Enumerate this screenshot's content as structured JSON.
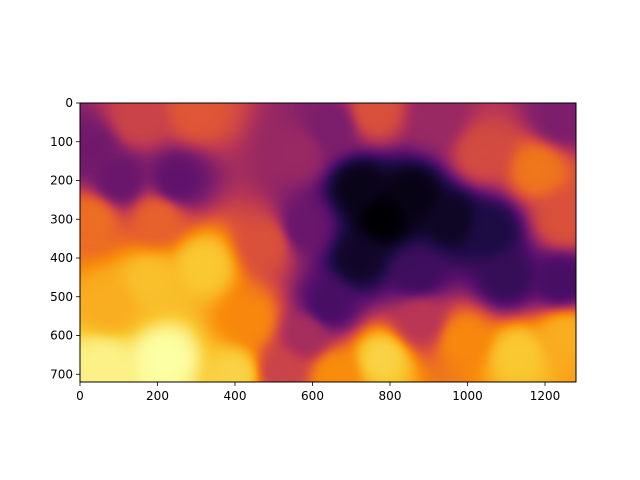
{
  "chart_data": {
    "type": "heatmap",
    "title": "",
    "xlabel": "",
    "ylabel": "",
    "colormap": "inferno",
    "image_size": [
      1280,
      720
    ],
    "xlim": [
      0,
      1280
    ],
    "ylim": [
      720,
      0
    ],
    "x_ticks": [
      0,
      200,
      400,
      600,
      800,
      1000,
      1200
    ],
    "y_ticks": [
      0,
      100,
      200,
      300,
      400,
      500,
      600,
      700
    ],
    "colorbar": false,
    "grid": false,
    "value_range": [
      0,
      1
    ],
    "field": {
      "note": "approximate relative intensity, 0 = dark (black/purple), 1 = bright (yellow)",
      "points": [
        {
          "x": 60,
          "y": 680,
          "v": 0.97
        },
        {
          "x": 220,
          "y": 660,
          "v": 1.0
        },
        {
          "x": 320,
          "y": 420,
          "v": 0.88
        },
        {
          "x": 180,
          "y": 460,
          "v": 0.86
        },
        {
          "x": 80,
          "y": 520,
          "v": 0.82
        },
        {
          "x": 30,
          "y": 300,
          "v": 0.68
        },
        {
          "x": 200,
          "y": 300,
          "v": 0.65
        },
        {
          "x": 440,
          "y": 560,
          "v": 0.74
        },
        {
          "x": 480,
          "y": 360,
          "v": 0.6
        },
        {
          "x": 150,
          "y": 40,
          "v": 0.55
        },
        {
          "x": 300,
          "y": 20,
          "v": 0.62
        },
        {
          "x": 100,
          "y": 200,
          "v": 0.3
        },
        {
          "x": 250,
          "y": 200,
          "v": 0.28
        },
        {
          "x": 30,
          "y": 120,
          "v": 0.32
        },
        {
          "x": 560,
          "y": 130,
          "v": 0.42
        },
        {
          "x": 650,
          "y": 60,
          "v": 0.35
        },
        {
          "x": 760,
          "y": 20,
          "v": 0.6
        },
        {
          "x": 920,
          "y": 40,
          "v": 0.42
        },
        {
          "x": 580,
          "y": 320,
          "v": 0.3
        },
        {
          "x": 640,
          "y": 520,
          "v": 0.22
        },
        {
          "x": 580,
          "y": 600,
          "v": 0.45
        },
        {
          "x": 780,
          "y": 300,
          "v": 0.0
        },
        {
          "x": 720,
          "y": 220,
          "v": 0.04
        },
        {
          "x": 860,
          "y": 240,
          "v": 0.03
        },
        {
          "x": 960,
          "y": 300,
          "v": 0.06
        },
        {
          "x": 720,
          "y": 400,
          "v": 0.07
        },
        {
          "x": 1060,
          "y": 330,
          "v": 0.12
        },
        {
          "x": 1100,
          "y": 450,
          "v": 0.18
        },
        {
          "x": 1240,
          "y": 460,
          "v": 0.22
        },
        {
          "x": 870,
          "y": 440,
          "v": 0.2
        },
        {
          "x": 1040,
          "y": 130,
          "v": 0.58
        },
        {
          "x": 1180,
          "y": 170,
          "v": 0.7
        },
        {
          "x": 1250,
          "y": 300,
          "v": 0.6
        },
        {
          "x": 1240,
          "y": 40,
          "v": 0.35
        },
        {
          "x": 780,
          "y": 660,
          "v": 0.9
        },
        {
          "x": 990,
          "y": 610,
          "v": 0.74
        },
        {
          "x": 1130,
          "y": 650,
          "v": 0.88
        },
        {
          "x": 1250,
          "y": 600,
          "v": 0.82
        },
        {
          "x": 880,
          "y": 560,
          "v": 0.5
        },
        {
          "x": 660,
          "y": 700,
          "v": 0.75
        },
        {
          "x": 520,
          "y": 690,
          "v": 0.55
        },
        {
          "x": 400,
          "y": 700,
          "v": 0.9
        }
      ]
    }
  }
}
